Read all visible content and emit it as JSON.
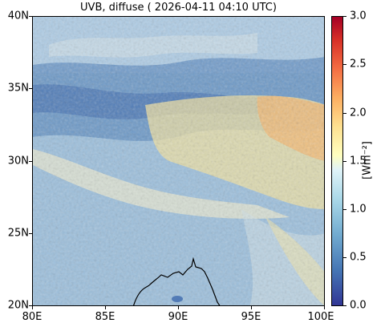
{
  "title": "UVB, diffuse ( 2026-04-11 04:10 UTC)",
  "x_ticks": [
    "80E",
    "85E",
    "90E",
    "95E",
    "100E"
  ],
  "y_ticks": [
    "40N",
    "35N",
    "30N",
    "25N",
    "20N"
  ],
  "colorbar": {
    "label": "[Wm⁻²]",
    "ticks": [
      "3.0",
      "2.5",
      "2.0",
      "1.5",
      "1.0",
      "0.5",
      "0.0"
    ],
    "range": [
      0.0,
      3.0
    ],
    "colormap": "RdYlBu_r"
  },
  "map_extent": {
    "lon": [
      80,
      100
    ],
    "lat": [
      20,
      40
    ]
  },
  "colors": {
    "background_field": "#9dbfdc",
    "low": "#313695",
    "high": "#a50026"
  }
}
